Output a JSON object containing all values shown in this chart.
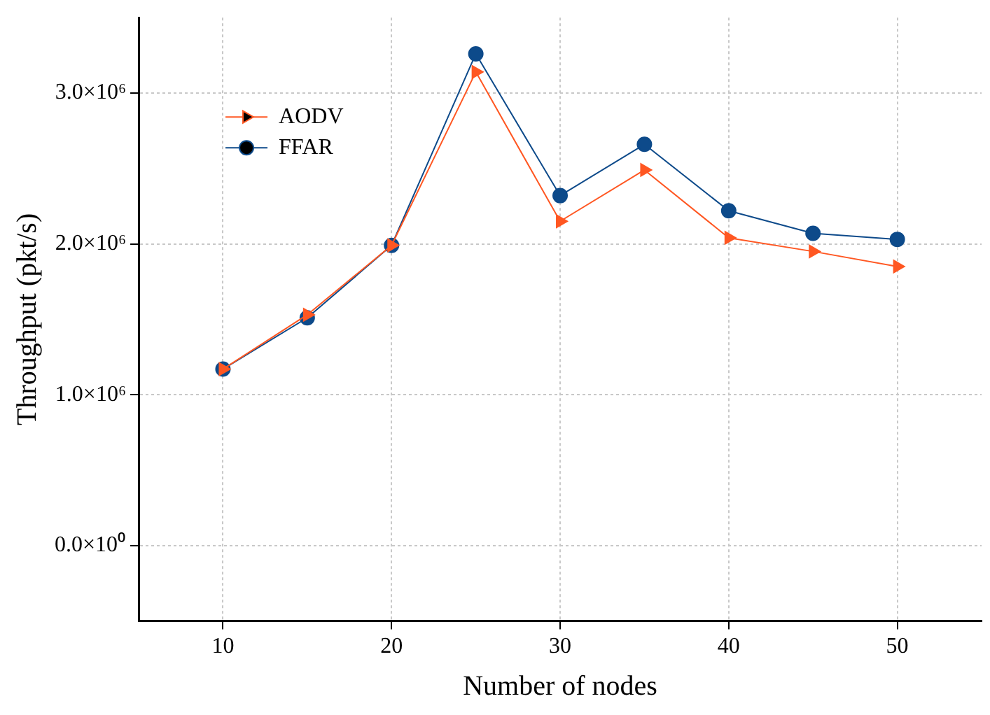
{
  "chart_data": {
    "type": "line",
    "xlabel": "Number of nodes",
    "ylabel": "Throughput (pkt/s)",
    "x": [
      10,
      15,
      20,
      25,
      30,
      35,
      40,
      45,
      50
    ],
    "series": [
      {
        "name": "AODV",
        "color": "#ff5722",
        "marker": "triangle",
        "values": [
          1170000,
          1530000,
          1990000,
          3140000,
          2150000,
          2490000,
          2040000,
          1950000,
          1850000
        ]
      },
      {
        "name": "FFAR",
        "color": "#0d4a8a",
        "marker": "circle",
        "values": [
          1170000,
          1510000,
          1990000,
          3260000,
          2320000,
          2660000,
          2220000,
          2070000,
          2030000
        ]
      }
    ],
    "xlim": [
      5,
      55
    ],
    "xticks": [
      10,
      20,
      30,
      40,
      50
    ],
    "ylim": [
      -500000,
      3500000
    ],
    "yticks": [
      {
        "value": 0,
        "label": "0.0×10⁰"
      },
      {
        "value": 1000000,
        "label": "1.0×10⁶"
      },
      {
        "value": 2000000,
        "label": "2.0×10⁶"
      },
      {
        "value": 3000000,
        "label": "3.0×10⁶"
      }
    ],
    "grid": true,
    "legend": "top left"
  }
}
